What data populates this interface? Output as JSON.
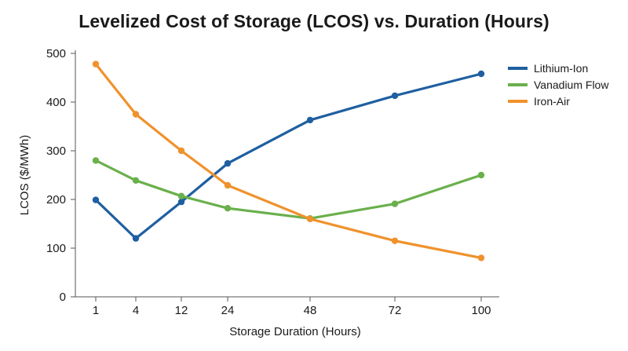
{
  "chart_data": {
    "type": "line",
    "title": "Levelized Cost of Storage (LCOS) vs. Duration (Hours)",
    "xlabel": "Storage Duration (Hours)",
    "ylabel": "LCOS ($/MWh)",
    "categories": [
      "1",
      "4",
      "12",
      "24",
      "48",
      "72",
      "100"
    ],
    "ylim": [
      0,
      500
    ],
    "yticks": [
      "0",
      "100",
      "200",
      "300",
      "400",
      "500"
    ],
    "grid": false,
    "legend_position": "top-right",
    "series": [
      {
        "name": "Lithium-Ion",
        "color": "#1f5fa0",
        "values": [
          199,
          120,
          195,
          274,
          363,
          413,
          458
        ]
      },
      {
        "name": "Vanadium Flow",
        "color": "#6ab04c",
        "values": [
          280,
          239,
          207,
          182,
          161,
          191,
          250
        ]
      },
      {
        "name": "Iron-Air",
        "color": "#f0922c",
        "values": [
          478,
          375,
          300,
          229,
          160,
          115,
          80
        ]
      }
    ]
  }
}
